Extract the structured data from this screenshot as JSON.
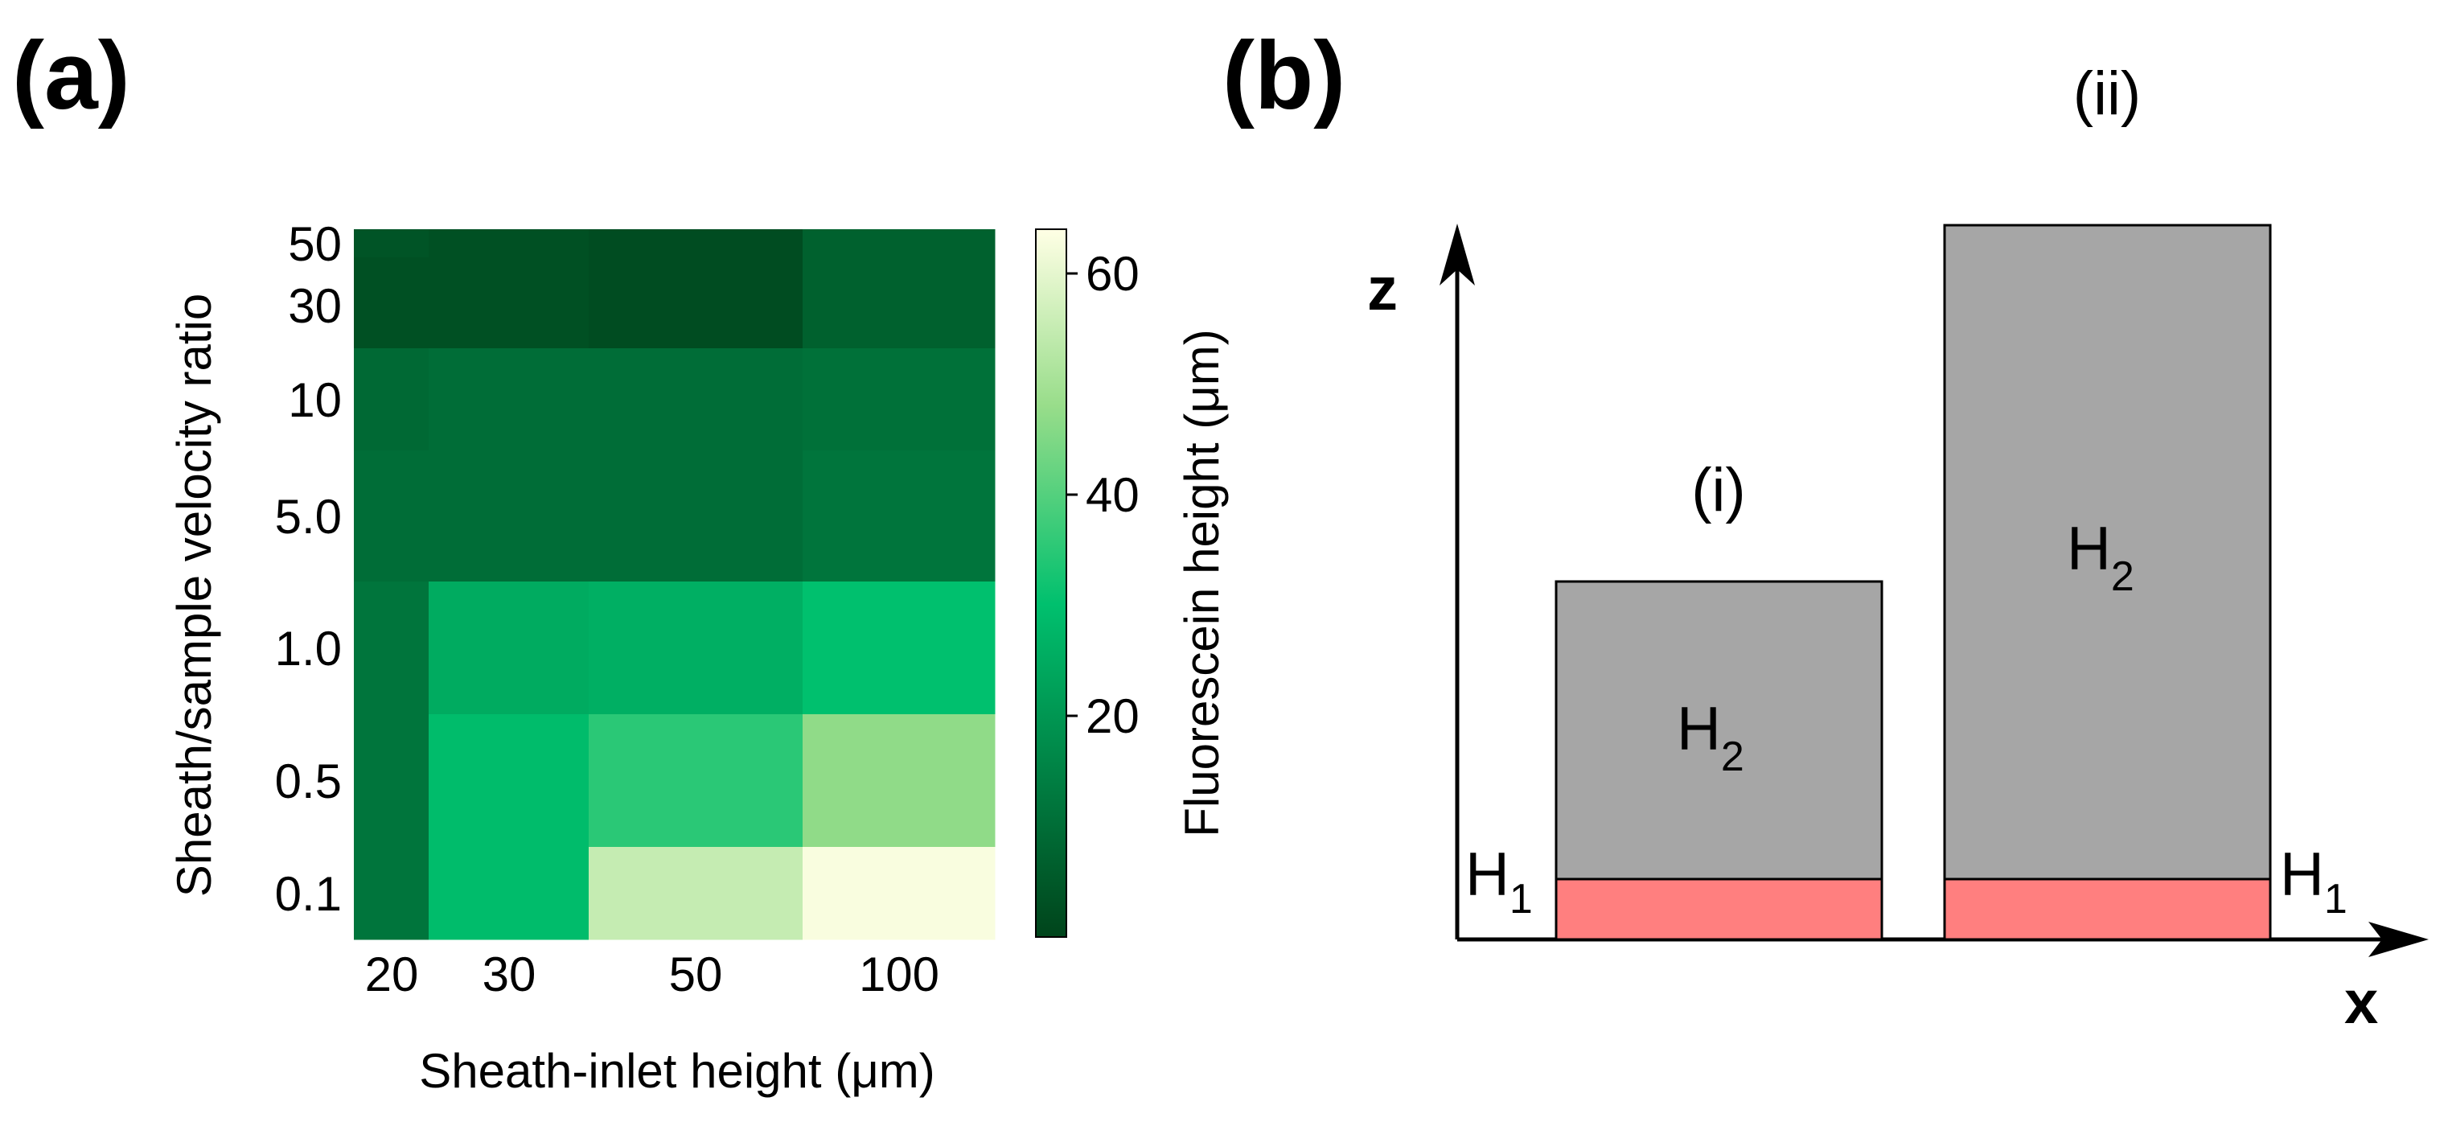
{
  "panel_a": {
    "label": "(a)",
    "ylabel": "Sheath/sample velocity ratio",
    "xlabel": "Sheath-inlet height (μm)",
    "colorbar": {
      "label": "Fluorescein height (μm)",
      "ticks": [
        "20",
        "40",
        "60"
      ],
      "tick_values": [
        20,
        40,
        60
      ],
      "range": [
        0,
        64
      ],
      "colors": [
        "#00441b",
        "#00c06e",
        "#ffffe5"
      ]
    }
  },
  "panel_b": {
    "label": "(b)",
    "z_label": "z",
    "x_label": "x",
    "case_i": {
      "label": "(i)",
      "h2": "H",
      "h2_sub": "2",
      "h1": "H",
      "h1_sub": "1"
    },
    "case_ii": {
      "label": "(ii)",
      "h2": "H",
      "h2_sub": "2",
      "h1": "H",
      "h1_sub": "1"
    },
    "colors": {
      "upper_layer": "#a6a6a6",
      "lower_layer": "#ff7f7f",
      "border": "#000000"
    }
  },
  "chart_data": {
    "type": "heatmap",
    "title": "",
    "xlabel": "Sheath-inlet height (μm)",
    "ylabel": "Sheath/sample velocity ratio",
    "x_categories": [
      "20",
      "30",
      "50",
      "100"
    ],
    "x_values": [
      20,
      30,
      50,
      100
    ],
    "y_categories": [
      "50",
      "30",
      "10",
      "5.0",
      "1.0",
      "0.5",
      "0.1"
    ],
    "y_values": [
      50,
      30,
      10,
      5.0,
      1.0,
      0.5,
      0.1
    ],
    "values_unit": "μm",
    "values": [
      [
        4,
        3,
        2,
        7
      ],
      [
        3,
        3,
        2,
        7
      ],
      [
        9,
        10,
        10,
        11
      ],
      [
        10,
        10,
        10,
        12
      ],
      [
        12,
        25,
        26,
        30
      ],
      [
        12,
        29,
        35,
        47
      ],
      [
        12,
        29,
        55,
        63
      ]
    ],
    "colorbar_range": [
      0,
      64
    ]
  }
}
